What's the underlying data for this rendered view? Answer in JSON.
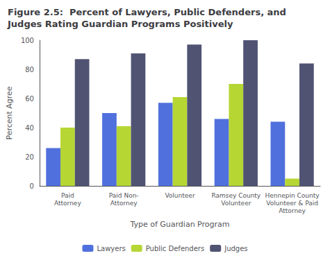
{
  "chart_data": {
    "type": "bar",
    "title": "Figure 2.5:  Percent of Lawyers, Public Defenders, and\nJudges Rating Guardian Programs Positively",
    "xlabel": "Type of Guardian Program",
    "ylabel": "Percent Agree",
    "categories": [
      "Paid\nAttorney",
      "Paid Non-\nAttorney",
      "Volunteer",
      "Ramsey County\nVolunteer",
      "Hennepin County\nVolunteer & Paid\nAttorney"
    ],
    "series": [
      {
        "name": "Lawyers",
        "values": [
          26,
          50,
          57,
          46,
          44
        ]
      },
      {
        "name": "Public Defenders",
        "values": [
          40,
          41,
          61,
          70,
          5
        ]
      },
      {
        "name": "Judges",
        "values": [
          87,
          91,
          97,
          100,
          84
        ]
      }
    ],
    "ylim": [
      0,
      100
    ],
    "yticks": [
      0,
      20,
      40,
      60,
      80,
      100
    ],
    "grid": false,
    "legend": "bottom"
  }
}
